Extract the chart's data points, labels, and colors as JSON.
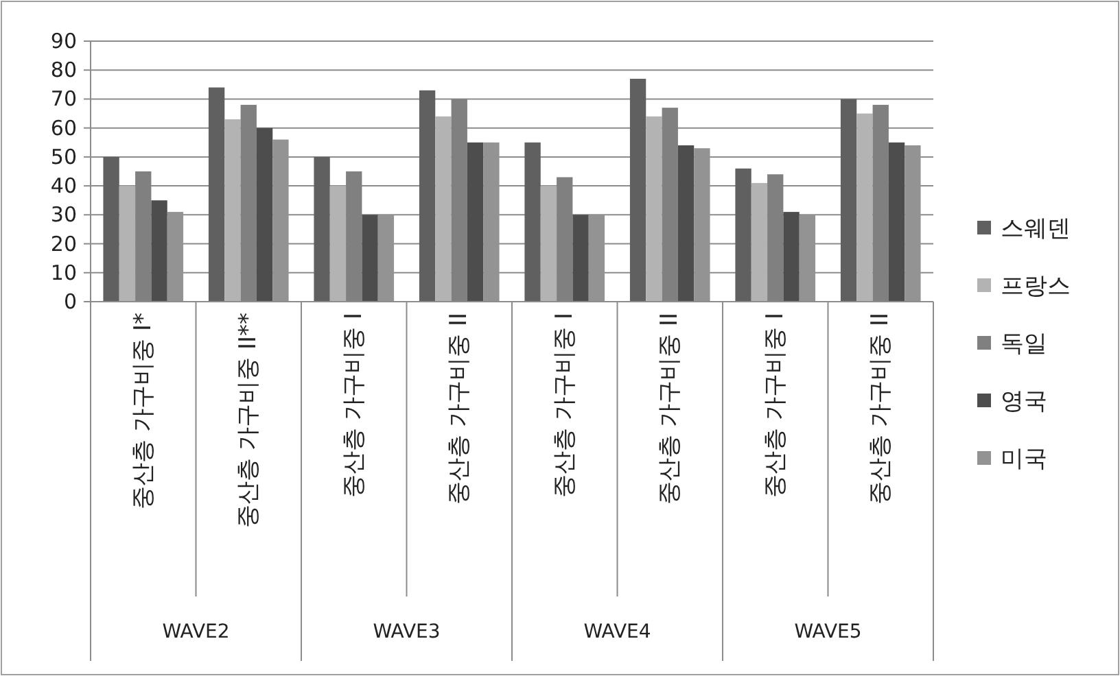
{
  "chart_data": {
    "type": "bar",
    "categories": [
      "중산층 가구비중 I*",
      "중산층 가구비중 II**",
      "중산층 가구비중 I",
      "중산층 가구비중 II",
      "중산층 가구비중 I",
      "중산층 가구비중 II",
      "중산층 가구비중 I",
      "중산층 가구비중 II"
    ],
    "annotations": [
      "WAVE2",
      "WAVE3",
      "WAVE4",
      "WAVE5"
    ],
    "series": [
      {
        "name": "스웨덴",
        "color": "#606060",
        "values": [
          50,
          74,
          50,
          73,
          55,
          77,
          46,
          70
        ]
      },
      {
        "name": "프랑스",
        "color": "#b3b3b3",
        "values": [
          40,
          63,
          40,
          64,
          40,
          64,
          41,
          65
        ]
      },
      {
        "name": "독일",
        "color": "#808080",
        "values": [
          45,
          68,
          45,
          70,
          43,
          67,
          44,
          68
        ]
      },
      {
        "name": "영국",
        "color": "#4d4d4d",
        "values": [
          35,
          60,
          30,
          55,
          30,
          54,
          31,
          55
        ]
      },
      {
        "name": "미국",
        "color": "#939393",
        "values": [
          31,
          56,
          30,
          55,
          30,
          53,
          30,
          54
        ]
      }
    ],
    "ylim": [
      0,
      90
    ],
    "yticks": [
      0,
      10,
      20,
      30,
      40,
      50,
      60,
      70,
      80,
      90
    ],
    "grid": "y",
    "legend": "right"
  }
}
